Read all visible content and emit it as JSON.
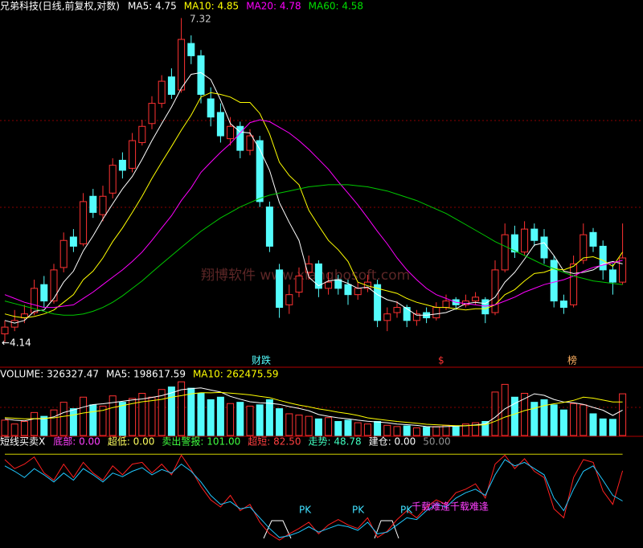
{
  "chart_data": [
    {
      "type": "candlestick",
      "title": "兄弟科技(日线,前复权,对数)",
      "log_scale": true,
      "ylim": [
        4.0,
        7.45
      ],
      "up_color": "#ff3232",
      "down_color": "#54fcfc",
      "header": [
        {
          "text": "MA5: 4.75",
          "color": "#ffffff"
        },
        {
          "text": "MA10: 4.85",
          "color": "#ffff00"
        },
        {
          "text": "MA20: 4.78",
          "color": "#ff00ff"
        },
        {
          "text": "MA60: 4.58",
          "color": "#00e000"
        }
      ],
      "annotations": [
        "7.32",
        "←4.14",
        "财跌",
        "$",
        "榜",
        "翔博软件 www.xiangbosoft.com"
      ],
      "open": [
        4.2,
        4.25,
        4.32,
        4.36,
        4.58,
        4.45,
        4.72,
        4.98,
        4.92,
        5.35,
        5.18,
        5.38,
        5.7,
        5.62,
        5.88,
        6.08,
        6.3,
        6.6,
        6.45,
        7.0,
        6.85,
        6.35,
        6.2,
        5.92,
        6.05,
        5.8,
        5.9,
        5.25,
        4.7,
        4.42,
        4.52,
        4.68,
        4.75,
        4.55,
        4.62,
        4.58,
        4.5,
        4.55,
        4.58,
        4.3,
        4.36,
        4.4,
        4.3,
        4.36,
        4.32,
        4.4,
        4.46,
        4.42,
        4.45,
        4.46,
        4.36,
        4.7,
        5.0,
        4.85,
        5.05,
        4.98,
        4.78,
        4.45,
        4.42,
        4.78,
        5.02,
        4.9,
        4.7,
        4.6
      ],
      "high": [
        4.3,
        4.38,
        4.42,
        4.62,
        4.65,
        4.75,
        5.02,
        5.05,
        5.38,
        5.42,
        5.45,
        5.72,
        5.78,
        5.98,
        6.12,
        6.38,
        6.62,
        6.7,
        7.32,
        7.1,
        6.92,
        6.48,
        6.3,
        6.15,
        6.1,
        6.02,
        5.95,
        5.3,
        4.75,
        4.58,
        4.72,
        4.82,
        4.78,
        4.68,
        4.66,
        4.62,
        4.6,
        4.66,
        4.62,
        4.4,
        4.45,
        4.42,
        4.38,
        4.4,
        4.44,
        4.5,
        4.48,
        4.5,
        4.52,
        4.48,
        4.78,
        5.1,
        5.08,
        5.12,
        5.1,
        5.05,
        4.82,
        4.5,
        4.82,
        5.1,
        5.06,
        4.95,
        4.75,
        5.1
      ],
      "low": [
        4.14,
        4.22,
        4.28,
        4.34,
        4.4,
        4.43,
        4.68,
        4.85,
        4.9,
        5.15,
        5.12,
        5.33,
        5.52,
        5.58,
        5.85,
        6.02,
        6.25,
        6.35,
        6.42,
        6.75,
        6.3,
        6.05,
        5.88,
        5.85,
        5.72,
        5.75,
        5.25,
        4.85,
        4.32,
        4.35,
        4.48,
        4.62,
        4.48,
        4.5,
        4.5,
        4.42,
        4.46,
        4.52,
        4.25,
        4.22,
        4.32,
        4.25,
        4.26,
        4.28,
        4.3,
        4.38,
        4.38,
        4.4,
        4.42,
        4.28,
        4.34,
        4.68,
        4.8,
        4.82,
        4.9,
        4.75,
        4.4,
        4.35,
        4.4,
        4.75,
        4.85,
        4.62,
        4.5,
        4.58
      ],
      "close": [
        4.25,
        4.3,
        4.35,
        4.55,
        4.45,
        4.7,
        4.95,
        4.9,
        5.3,
        5.2,
        5.35,
        5.65,
        5.6,
        5.9,
        6.05,
        6.3,
        6.55,
        6.4,
        7.05,
        6.85,
        6.4,
        6.15,
        5.95,
        6.05,
        5.8,
        5.95,
        5.3,
        4.9,
        4.4,
        4.5,
        4.65,
        4.75,
        4.55,
        4.6,
        4.55,
        4.5,
        4.55,
        4.6,
        4.3,
        4.35,
        4.4,
        4.3,
        4.35,
        4.32,
        4.4,
        4.45,
        4.42,
        4.45,
        4.48,
        4.35,
        4.7,
        5.0,
        4.85,
        5.05,
        4.95,
        4.8,
        4.45,
        4.4,
        4.75,
        5.0,
        4.9,
        4.7,
        4.6,
        4.8
      ],
      "series": [
        {
          "color": "#ffffff",
          "values": [
            4.3,
            4.28,
            4.3,
            4.37,
            4.38,
            4.47,
            4.6,
            4.69,
            4.86,
            4.99,
            5.14,
            5.28,
            5.42,
            5.54,
            5.71,
            5.9,
            6.08,
            6.26,
            6.47,
            6.63,
            6.65,
            6.57,
            6.34,
            6.08,
            5.99,
            5.98,
            5.81,
            5.6,
            5.29,
            5.11,
            4.95,
            4.64,
            4.57,
            4.61,
            4.62,
            4.59,
            4.55,
            4.56,
            4.5,
            4.46,
            4.44,
            4.39,
            4.34,
            4.34,
            4.35,
            4.36,
            4.39,
            4.43,
            4.44,
            4.43,
            4.48,
            4.6,
            4.68,
            4.79,
            4.91,
            4.93,
            4.82,
            4.69,
            4.67,
            4.68,
            4.7,
            4.75,
            4.77,
            4.75
          ]
        },
        {
          "color": "#ffff00",
          "values": [
            4.35,
            4.33,
            4.32,
            4.33,
            4.35,
            4.38,
            4.44,
            4.5,
            4.62,
            4.69,
            4.8,
            4.94,
            5.06,
            5.2,
            5.35,
            5.52,
            5.68,
            5.84,
            6.01,
            6.17,
            6.37,
            6.42,
            6.4,
            6.37,
            6.31,
            6.31,
            6.19,
            5.97,
            5.68,
            5.55,
            5.46,
            5.22,
            5.08,
            4.95,
            4.87,
            4.77,
            4.6,
            4.57,
            4.55,
            4.53,
            4.51,
            4.47,
            4.44,
            4.42,
            4.4,
            4.4,
            4.39,
            4.38,
            4.39,
            4.39,
            4.42,
            4.5,
            4.54,
            4.61,
            4.67,
            4.68,
            4.71,
            4.7,
            4.73,
            4.8,
            4.81,
            4.78,
            4.73,
            4.85
          ]
        },
        {
          "color": "#ff00ff",
          "values": [
            4.5,
            4.47,
            4.44,
            4.42,
            4.4,
            4.4,
            4.41,
            4.42,
            4.47,
            4.52,
            4.58,
            4.64,
            4.7,
            4.77,
            4.85,
            4.95,
            5.06,
            5.17,
            5.31,
            5.43,
            5.58,
            5.68,
            5.78,
            5.87,
            5.98,
            6.09,
            6.12,
            6.1,
            6.04,
            5.98,
            5.9,
            5.81,
            5.71,
            5.61,
            5.49,
            5.38,
            5.27,
            5.15,
            5.03,
            4.92,
            4.8,
            4.7,
            4.62,
            4.55,
            4.5,
            4.47,
            4.44,
            4.43,
            4.42,
            4.41,
            4.42,
            4.45,
            4.48,
            4.52,
            4.55,
            4.58,
            4.6,
            4.62,
            4.65,
            4.69,
            4.72,
            4.74,
            4.76,
            4.78
          ]
        },
        {
          "color": "#00c800",
          "values": [
            4.45,
            4.43,
            4.41,
            4.39,
            4.37,
            4.35,
            4.34,
            4.34,
            4.35,
            4.37,
            4.4,
            4.44,
            4.49,
            4.55,
            4.61,
            4.68,
            4.75,
            4.82,
            4.89,
            4.96,
            5.03,
            5.09,
            5.15,
            5.2,
            5.25,
            5.29,
            5.33,
            5.36,
            5.38,
            5.4,
            5.42,
            5.44,
            5.45,
            5.46,
            5.46,
            5.46,
            5.45,
            5.44,
            5.42,
            5.4,
            5.37,
            5.34,
            5.31,
            5.27,
            5.23,
            5.19,
            5.14,
            5.09,
            5.04,
            4.99,
            4.94,
            4.9,
            4.86,
            4.82,
            4.78,
            4.74,
            4.71,
            4.68,
            4.65,
            4.63,
            4.61,
            4.6,
            4.59,
            4.58
          ]
        }
      ]
    },
    {
      "type": "bar",
      "ylim": [
        0,
        440000
      ],
      "up_color": "#ff3232",
      "down_color": "#54fcfc",
      "header": [
        {
          "text": "VOLUME: 326327.47",
          "color": "#ffffff"
        },
        {
          "text": "MA5: 198617.59",
          "color": "#ffffff"
        },
        {
          "text": "MA10: 262475.59",
          "color": "#ffff00"
        }
      ],
      "values": [
        120000,
        90000,
        110000,
        180000,
        150000,
        200000,
        260000,
        210000,
        300000,
        240000,
        230000,
        310000,
        260000,
        290000,
        330000,
        300000,
        360000,
        380000,
        420000,
        370000,
        330000,
        280000,
        300000,
        250000,
        260000,
        230000,
        240000,
        280000,
        210000,
        170000,
        160000,
        150000,
        130000,
        140000,
        110000,
        120000,
        100000,
        90000,
        110000,
        80000,
        70000,
        75000,
        60000,
        65000,
        70000,
        80000,
        75000,
        90000,
        100000,
        110000,
        340000,
        400000,
        300000,
        330000,
        260000,
        280000,
        240000,
        200000,
        250000,
        240000,
        170000,
        130000,
        126760.5,
        326327.47
      ],
      "series": [
        {
          "color": "#ffffff",
          "values": [
            130000,
            120000,
            115000,
            130000,
            130000,
            146000,
            180000,
            200000,
            222000,
            242000,
            248000,
            258000,
            268000,
            278000,
            286000,
            298000,
            312000,
            334000,
            358000,
            366000,
            372000,
            356000,
            340000,
            306000,
            284000,
            264000,
            256000,
            252000,
            244000,
            226000,
            212000,
            194000,
            164000,
            150000,
            138000,
            130000,
            120000,
            112000,
            106000,
            100000,
            90000,
            85000,
            79000,
            70000,
            68000,
            70000,
            73000,
            76000,
            83000,
            91000,
            143000,
            209000,
            250000,
            288000,
            326000,
            314000,
            282000,
            262000,
            256000,
            244000,
            220000,
            198000,
            157000,
            198617.59
          ]
        },
        {
          "color": "#ffff00",
          "values": [
            140000,
            135000,
            130000,
            132000,
            133000,
            138000,
            150000,
            160000,
            176000,
            186000,
            197000,
            219000,
            234000,
            250000,
            264000,
            273000,
            283000,
            300000,
            312000,
            326000,
            335000,
            334000,
            337000,
            332000,
            325000,
            318000,
            306000,
            296000,
            275000,
            255000,
            238000,
            225000,
            208000,
            197000,
            182000,
            171000,
            157000,
            138000,
            128000,
            119000,
            110000,
            103000,
            96000,
            88000,
            84000,
            80000,
            77000,
            77000,
            80000,
            84000,
            111000,
            144000,
            168000,
            195000,
            213000,
            234000,
            248000,
            259000,
            275000,
            300000,
            292000,
            277000,
            262000,
            262475.59
          ]
        }
      ]
    },
    {
      "type": "line",
      "title": "短线买卖X",
      "ylim": [
        -2,
        104
      ],
      "header": [
        {
          "text": "底部: 0.00",
          "color": "#ff40ff"
        },
        {
          "text": "超低: 0.00",
          "color": "#ffff60"
        },
        {
          "text": "卖出警报: 101.00",
          "color": "#40ff40"
        },
        {
          "text": "超短: 82.50",
          "color": "#ff4040"
        },
        {
          "text": "走势: 48.78",
          "color": "#40ffc0"
        },
        {
          "text": "建仓: 0.00",
          "color": "#ffffff"
        },
        {
          "text": "50.00",
          "color": "#909090"
        }
      ],
      "annotations": [
        "PK",
        "PK",
        "PK",
        "千载难逢",
        "千载难逢"
      ],
      "series": [
        {
          "color": "#d0d000",
          "values": [
            101,
            101,
            101,
            101,
            101,
            101,
            101,
            101,
            101,
            101,
            101,
            101,
            101,
            101,
            101,
            101,
            101,
            101,
            101,
            101,
            101,
            101,
            101,
            101,
            101,
            101,
            101,
            101,
            101,
            101,
            101,
            101,
            101,
            101,
            101,
            101,
            101,
            101,
            101,
            101,
            101,
            101,
            101,
            101,
            101,
            101,
            101,
            101,
            101,
            101,
            101,
            101,
            101,
            101,
            101,
            101,
            101,
            101,
            101,
            101,
            101,
            101,
            101,
            101
          ]
        },
        {
          "color": "#ff2020",
          "values": [
            95,
            85,
            90,
            98,
            80,
            72,
            90,
            75,
            92,
            80,
            72,
            88,
            78,
            90,
            92,
            80,
            90,
            78,
            100,
            84,
            65,
            50,
            42,
            55,
            38,
            45,
            25,
            12,
            5,
            12,
            18,
            25,
            12,
            22,
            28,
            22,
            18,
            30,
            8,
            15,
            28,
            38,
            30,
            42,
            50,
            45,
            58,
            62,
            68,
            52,
            90,
            100,
            85,
            96,
            82,
            75,
            40,
            30,
            75,
            95,
            92,
            60,
            45,
            82.5
          ]
        },
        {
          "color": "#20c8ff",
          "values": [
            88,
            82,
            75,
            85,
            78,
            70,
            80,
            72,
            85,
            78,
            70,
            80,
            76,
            82,
            86,
            78,
            84,
            80,
            90,
            82,
            70,
            55,
            45,
            48,
            40,
            42,
            30,
            18,
            8,
            10,
            14,
            20,
            14,
            18,
            22,
            20,
            16,
            25,
            12,
            14,
            22,
            30,
            28,
            38,
            45,
            42,
            52,
            58,
            62,
            55,
            78,
            95,
            88,
            92,
            85,
            78,
            52,
            38,
            62,
            82,
            88,
            72,
            55,
            48.78
          ]
        }
      ]
    }
  ]
}
